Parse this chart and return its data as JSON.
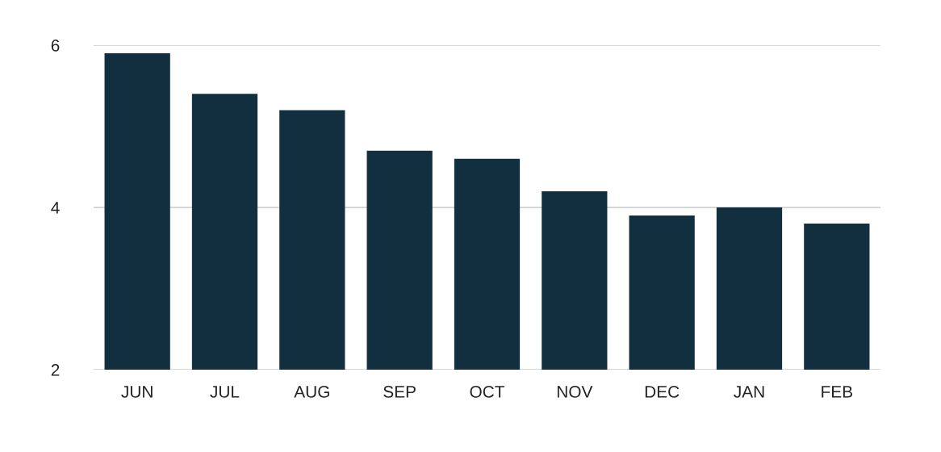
{
  "chart_data": {
    "type": "bar",
    "categories": [
      "JUN",
      "JUL",
      "AUG",
      "SEP",
      "OCT",
      "NOV",
      "DEC",
      "JAN",
      "FEB"
    ],
    "values": [
      5.9,
      5.4,
      5.2,
      4.7,
      4.6,
      4.2,
      3.9,
      4.0,
      3.8
    ],
    "color": "#122f3f",
    "ylim": [
      2,
      6
    ],
    "yticks": [
      2,
      4,
      6
    ],
    "grid": "y"
  }
}
